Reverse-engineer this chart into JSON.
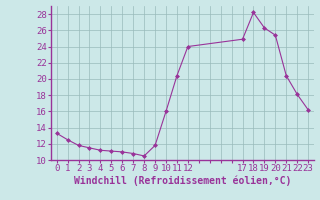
{
  "x": [
    0,
    1,
    2,
    3,
    4,
    5,
    6,
    7,
    8,
    9,
    10,
    11,
    12,
    17,
    18,
    19,
    20,
    21,
    22,
    23
  ],
  "y": [
    13.3,
    12.5,
    11.8,
    11.5,
    11.2,
    11.1,
    11.0,
    10.8,
    10.5,
    11.8,
    16.0,
    20.4,
    24.0,
    24.9,
    28.2,
    26.3,
    25.4,
    20.4,
    18.1,
    16.2
  ],
  "line_color": "#993399",
  "marker": "D",
  "marker_size": 2.0,
  "bg_color": "#cce8e8",
  "grid_color": "#99bbbb",
  "xlabel": "Windchill (Refroidissement éolien,°C)",
  "xlabel_color": "#993399",
  "xlim": [
    -0.5,
    23.5
  ],
  "ylim": [
    10,
    29
  ],
  "yticks": [
    10,
    12,
    14,
    16,
    18,
    20,
    22,
    24,
    26,
    28
  ],
  "font_size": 6.5,
  "xlabel_fontsize": 7.0
}
